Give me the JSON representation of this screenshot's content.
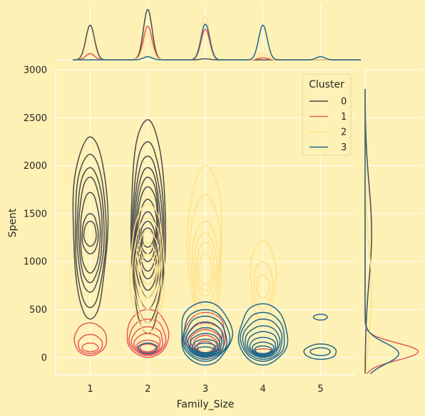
{
  "chart_data": {
    "type": "joint-kde",
    "xlabel": "Family_Size",
    "ylabel": "Spent",
    "x_ticks": [
      "1",
      "2",
      "3",
      "4",
      "5"
    ],
    "y_ticks": [
      "0",
      "500",
      "1000",
      "1500",
      "2000",
      "2500",
      "3000"
    ],
    "xlim": [
      0.4,
      5.6
    ],
    "ylim": [
      -180,
      3000
    ],
    "grid": true,
    "background": "#FEF1B5",
    "legend": {
      "title": "Cluster",
      "placement": "top-right"
    },
    "series": [
      {
        "name": "0",
        "color": "#4A4A4A",
        "x_marginal_peaks": [
          {
            "x": 1,
            "h": 0.66
          },
          {
            "x": 2,
            "h": 0.96
          },
          {
            "x": 3,
            "h": 0.02
          }
        ],
        "y_marginal_peaks": [
          {
            "y": 1300,
            "w": 0.12,
            "s": 500
          }
        ],
        "contours": [
          {
            "cx": 1,
            "cy": 1350,
            "rx": 0.3,
            "levels": [
              [
                400,
                2300
              ],
              [
                520,
                2120
              ],
              [
                680,
                1980
              ],
              [
                780,
                1880
              ],
              [
                880,
                1720
              ],
              [
                1080,
                1500
              ],
              [
                1160,
                1420
              ]
            ]
          },
          {
            "cx": 2,
            "cy": 1400,
            "rx": 0.3,
            "levels": [
              [
                250,
                2480
              ],
              [
                360,
                2250
              ],
              [
                500,
                2100
              ],
              [
                620,
                1980
              ],
              [
                700,
                1880
              ],
              [
                820,
                1780
              ],
              [
                900,
                1650
              ],
              [
                1000,
                1520
              ],
              [
                1080,
                1420
              ],
              [
                1150,
                1350
              ]
            ]
          }
        ]
      },
      {
        "name": "1",
        "color": "#E8575A",
        "x_marginal_peaks": [
          {
            "x": 1,
            "h": 0.12
          },
          {
            "x": 2,
            "h": 0.64
          },
          {
            "x": 3,
            "h": 0.58
          },
          {
            "x": 4,
            "h": 0.04
          }
        ],
        "y_marginal_peaks": [
          {
            "y": 60,
            "w": 0.98,
            "s": 90
          }
        ],
        "contours": [
          {
            "cx": 1,
            "cy": 120,
            "rx": 0.28,
            "levels": [
              [
                20,
                360
              ],
              [
                40,
                240
              ],
              [
                60,
                150
              ]
            ]
          },
          {
            "cx": 2,
            "cy": 150,
            "rx": 0.36,
            "levels": [
              [
                0,
                500
              ],
              [
                20,
                400
              ],
              [
                30,
                320
              ],
              [
                40,
                250
              ],
              [
                50,
                180
              ],
              [
                60,
                140
              ]
            ]
          },
          {
            "cx": 3,
            "cy": 150,
            "rx": 0.36,
            "levels": [
              [
                0,
                470
              ],
              [
                20,
                360
              ],
              [
                30,
                290
              ],
              [
                40,
                230
              ],
              [
                50,
                170
              ]
            ]
          },
          {
            "cx": 4,
            "cy": 60,
            "rx": 0.16,
            "levels": [
              [
                30,
                90
              ]
            ]
          }
        ]
      },
      {
        "name": "2",
        "color": "#FFE08A",
        "x_marginal_peaks": [
          {
            "x": 2,
            "h": 0.48
          },
          {
            "x": 3,
            "h": 0.82
          },
          {
            "x": 4,
            "h": 0.12
          }
        ],
        "y_marginal_peaks": [
          {
            "y": 700,
            "w": 0.12,
            "s": 450
          }
        ],
        "contours": [
          {
            "cx": 2,
            "cy": 1000,
            "rx": 0.3,
            "levels": [
              [
                260,
                1600
              ],
              [
                360,
                1460
              ],
              [
                500,
                1320
              ],
              [
                620,
                1200
              ],
              [
                760,
                1080
              ]
            ]
          },
          {
            "cx": 3,
            "cy": 1000,
            "rx": 0.3,
            "levels": [
              [
                300,
                2000
              ],
              [
                420,
                1700
              ],
              [
                540,
                1420
              ],
              [
                640,
                1300
              ],
              [
                700,
                1200
              ],
              [
                760,
                1080
              ]
            ]
          },
          {
            "cx": 4,
            "cy": 800,
            "rx": 0.22,
            "levels": [
              [
                400,
                1220
              ],
              [
                500,
                1000
              ],
              [
                620,
                860
              ]
            ]
          }
        ]
      },
      {
        "name": "3",
        "color": "#21688C",
        "x_marginal_peaks": [
          {
            "x": 2,
            "h": 0.06
          },
          {
            "x": 3,
            "h": 0.68
          },
          {
            "x": 4,
            "h": 0.66
          },
          {
            "x": 5,
            "h": 0.06
          }
        ],
        "y_marginal_peaks": [
          {
            "y": 40,
            "w": 0.62,
            "s": 110
          }
        ],
        "contours": [
          {
            "cx": 2,
            "cy": 90,
            "rx": 0.16,
            "levels": [
              [
                40,
                150
              ]
            ]
          },
          {
            "cx": 3,
            "cy": 240,
            "rx": 0.44,
            "levels": [
              [
                -80,
                580
              ],
              [
                -40,
                500
              ],
              [
                -20,
                430
              ],
              [
                0,
                370
              ],
              [
                10,
                310
              ],
              [
                20,
                250
              ],
              [
                30,
                190
              ],
              [
                40,
                150
              ],
              [
                50,
                110
              ]
            ]
          },
          {
            "cx": 4,
            "cy": 200,
            "rx": 0.42,
            "levels": [
              [
                -80,
                560
              ],
              [
                -40,
                470
              ],
              [
                -20,
                400
              ],
              [
                0,
                330
              ],
              [
                10,
                270
              ],
              [
                20,
                210
              ],
              [
                30,
                160
              ],
              [
                40,
                120
              ]
            ]
          },
          {
            "cx": 5,
            "cy": 60,
            "rx": 0.28,
            "levels": [
              [
                -20,
                140
              ],
              [
                20,
                100
              ]
            ]
          },
          {
            "cx": 5,
            "cy": 420,
            "rx": 0.12,
            "levels": [
              [
                390,
                450
              ]
            ]
          }
        ]
      }
    ]
  }
}
